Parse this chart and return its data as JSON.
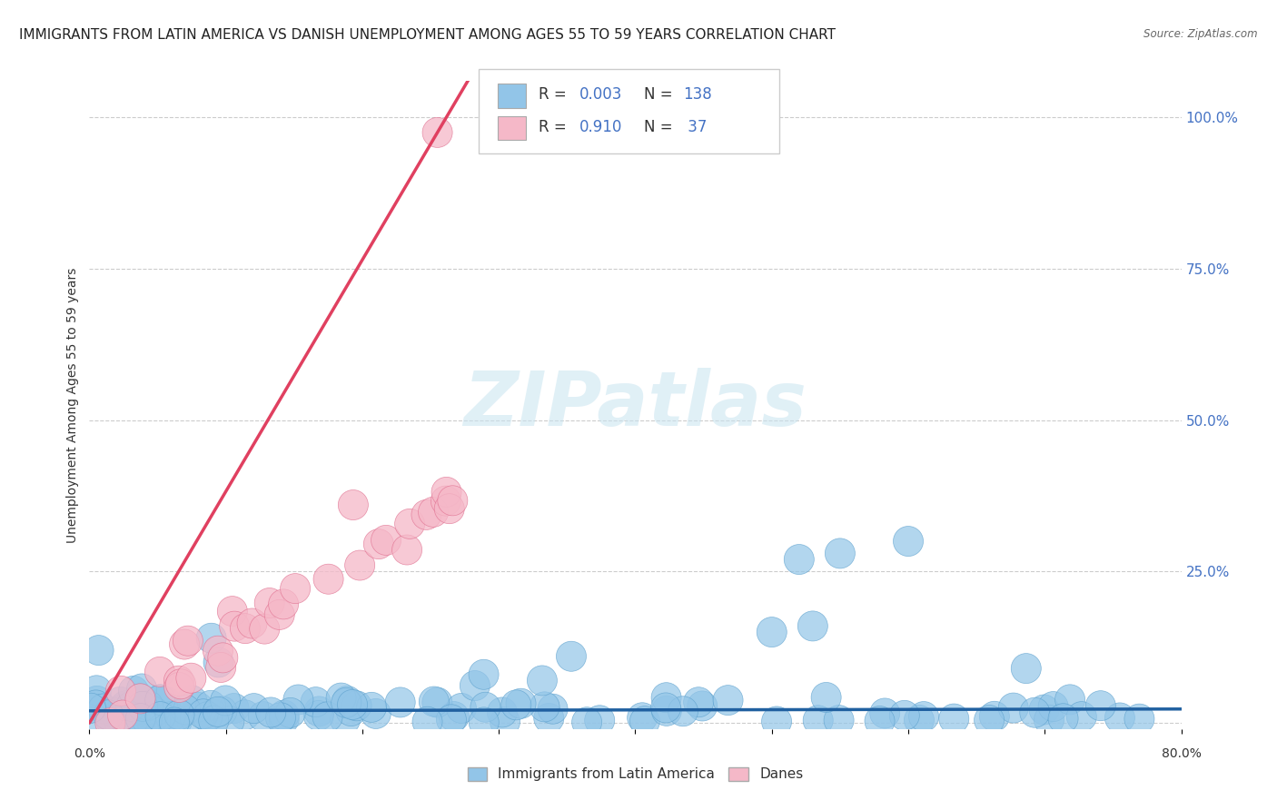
{
  "title": "IMMIGRANTS FROM LATIN AMERICA VS DANISH UNEMPLOYMENT AMONG AGES 55 TO 59 YEARS CORRELATION CHART",
  "source": "Source: ZipAtlas.com",
  "watermark": "ZIPatlas",
  "ylabel": "Unemployment Among Ages 55 to 59 years",
  "xmin": 0.0,
  "xmax": 0.8,
  "ymin": -0.01,
  "ymax": 1.06,
  "yticks": [
    0.0,
    0.25,
    0.5,
    0.75,
    1.0
  ],
  "ytick_labels": [
    "",
    "25.0%",
    "50.0%",
    "75.0%",
    "100.0%"
  ],
  "blue_color": "#92C5E8",
  "blue_edge_color": "#5A9FCC",
  "blue_line_color": "#2060A0",
  "pink_color": "#F5B8C8",
  "pink_edge_color": "#E07090",
  "pink_line_color": "#E04060",
  "blue_R": 0.003,
  "blue_N": 138,
  "pink_R": 0.91,
  "pink_N": 37,
  "background_color": "#FFFFFF",
  "grid_color": "#CCCCCC",
  "title_fontsize": 11,
  "watermark_color": "#C8E4F0",
  "watermark_fontsize": 60,
  "right_tick_color": "#4472C4"
}
